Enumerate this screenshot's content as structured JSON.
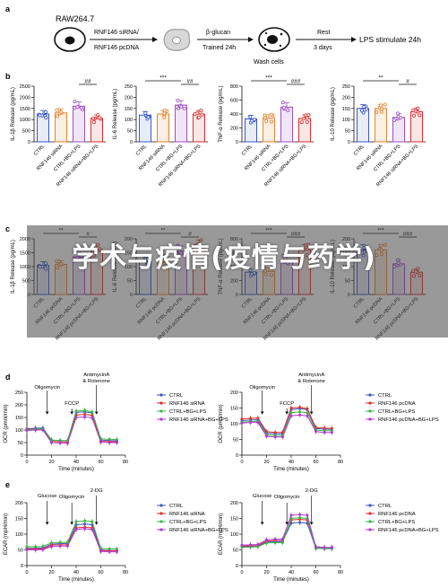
{
  "panel_letters": [
    "a",
    "b",
    "c",
    "d",
    "e"
  ],
  "schema": {
    "cell": "RAW264.7",
    "transfection_top": "RNF146 siRNA/",
    "transfection_bottom": "RNF146 pcDNA",
    "stim_top": "β-glucan",
    "stim_bottom": "Trained 24h",
    "wash": "Wash cells",
    "rest_top": "Rest",
    "rest_bottom": "3 days",
    "final": "LPS stimulate 24h"
  },
  "colors": {
    "blue": "#3a56c8",
    "orange": "#e8822f",
    "purple": "#a04dc8",
    "red": "#e02c2c",
    "green": "#3cb449",
    "magenta": "#b03ad0"
  },
  "cytokine_b": [
    {
      "ylabel": "IL-1β Release (pg/mL)",
      "ticks": [
        "0",
        "500",
        "1000",
        "1500",
        "2000",
        "2500"
      ],
      "ylim": [
        0,
        2500
      ],
      "groups": [
        "CTRL",
        "RNF146 siRNA",
        "CTRL+BG+LPS",
        "RNF146 siRNA+BG+LPS"
      ],
      "values": [
        1250,
        1300,
        1600,
        1050
      ],
      "sig": [
        {
          "label": "##",
          "from": 2,
          "to": 3
        }
      ]
    },
    {
      "ylabel": "IL-6 Release (pg/mL)",
      "ticks": [
        "0",
        "50",
        "100",
        "150",
        "200",
        "250"
      ],
      "ylim": [
        0,
        250
      ],
      "groups": [
        "CTRL",
        "RNF146 siRNA",
        "CTRL+BG+LPS",
        "RNF146 siRNA+BG+LPS"
      ],
      "values": [
        120,
        125,
        165,
        125
      ],
      "sig": [
        {
          "label": "***",
          "from": 0,
          "to": 2
        },
        {
          "label": "##",
          "from": 2,
          "to": 3
        }
      ]
    },
    {
      "ylabel": "TNF-α Release (pg/mL)",
      "ticks": [
        "0",
        "200",
        "400",
        "600",
        "800"
      ],
      "ylim": [
        0,
        800
      ],
      "groups": [
        "CTRL",
        "RNF146 siRNA",
        "CTRL+BG+LPS",
        "RNF146 siRNA+BG+LPS"
      ],
      "values": [
        330,
        340,
        500,
        335
      ],
      "sig": [
        {
          "label": "***",
          "from": 0,
          "to": 2
        },
        {
          "label": "###",
          "from": 2,
          "to": 3
        }
      ]
    },
    {
      "ylabel": "IL-10 Release (pg/mL)",
      "ticks": [
        "0",
        "50",
        "100",
        "150",
        "200",
        "250"
      ],
      "ylim": [
        0,
        250
      ],
      "groups": [
        "CTRL",
        "RNF146 siRNA",
        "CTRL+BG+LPS",
        "RNF146 siRNA+BG+LPS"
      ],
      "values": [
        150,
        150,
        110,
        135
      ],
      "sig": [
        {
          "label": "**",
          "from": 0,
          "to": 2
        },
        {
          "label": "#",
          "from": 2,
          "to": 3
        }
      ]
    }
  ],
  "cytokine_c": [
    {
      "ylabel": "IL-1β Release (pg/mL)",
      "ticks": [
        "0",
        "500",
        "1000",
        "1500",
        "2000"
      ],
      "ylim": [
        0,
        2000
      ],
      "groups": [
        "CTRL",
        "RNF146 pcDNA",
        "CTRL+BG+LPS",
        "RNF146 pcDNA+BG+LPS"
      ],
      "values": [
        1050,
        1080,
        1350,
        1600
      ],
      "sig": [
        {
          "label": "**",
          "from": 0,
          "to": 2
        },
        {
          "label": "#",
          "from": 2,
          "to": 3
        }
      ]
    },
    {
      "ylabel": "IL-6 Release (pg/mL)",
      "ticks": [
        "0",
        "50",
        "100",
        "150",
        "200"
      ],
      "ylim": [
        0,
        200
      ],
      "groups": [
        "CTRL",
        "RNF146 pcDNA",
        "CTRL+BG+LPS",
        "RNF146 pcDNA+BG+LPS"
      ],
      "values": [
        120,
        125,
        155,
        175
      ],
      "sig": [
        {
          "label": "**",
          "from": 0,
          "to": 2
        },
        {
          "label": "#",
          "from": 2,
          "to": 3
        }
      ]
    },
    {
      "ylabel": "TNF-α Release (pg/mL)",
      "ticks": [
        "0",
        "200",
        "400",
        "600",
        "800"
      ],
      "ylim": [
        0,
        800
      ],
      "groups": [
        "CTRL",
        "RNF146 pcDNA",
        "CTRL+BG+LPS",
        "RNF146 pcDNA+BG+LPS"
      ],
      "values": [
        320,
        330,
        490,
        640
      ],
      "sig": [
        {
          "label": "***",
          "from": 0,
          "to": 2
        },
        {
          "label": "###",
          "from": 2,
          "to": 3
        }
      ]
    },
    {
      "ylabel": "IL-10 Release (pg/mL)",
      "ticks": [
        "0",
        "50",
        "100",
        "150",
        "200"
      ],
      "ylim": [
        0,
        200
      ],
      "groups": [
        "CTRL",
        "RNF146 pcDNA",
        "CTRL+BG+LPS",
        "RNF146 pcDNA+BG+LPS"
      ],
      "values": [
        160,
        160,
        110,
        80
      ],
      "sig": [
        {
          "label": "***",
          "from": 0,
          "to": 2
        },
        {
          "label": "###",
          "from": 2,
          "to": 3
        }
      ]
    }
  ],
  "chart_data": [
    {
      "type": "line",
      "ylabel": "OCR (pmol/min)",
      "xlabel": "Time (minutes)",
      "xticks": [
        "0",
        "20",
        "40",
        "60",
        "80"
      ],
      "yticks": [
        "0",
        "50",
        "100",
        "150",
        "200",
        "250"
      ],
      "ylim": [
        0,
        250
      ],
      "xlim": [
        0,
        80
      ],
      "annotations": [
        "Oligomycin",
        "FCCP",
        "AntimycinA",
        "& Rotenone"
      ],
      "x": [
        0,
        7,
        13,
        20,
        27,
        33,
        40,
        47,
        53,
        60,
        67,
        73
      ],
      "series": [
        {
          "name": "CTRL",
          "values": [
            105,
            107,
            108,
            60,
            58,
            57,
            170,
            172,
            168,
            60,
            58,
            57
          ]
        },
        {
          "name": "RNF146 siRNA",
          "values": [
            102,
            104,
            104,
            55,
            53,
            52,
            160,
            162,
            158,
            55,
            54,
            53
          ]
        },
        {
          "name": "CTRL+BG+LPS",
          "values": [
            100,
            103,
            105,
            60,
            58,
            58,
            175,
            178,
            172,
            65,
            63,
            62
          ]
        },
        {
          "name": "RNF146 siRNA+BG+LPS",
          "values": [
            98,
            100,
            100,
            50,
            48,
            47,
            150,
            152,
            148,
            52,
            50,
            50
          ]
        }
      ]
    },
    {
      "type": "line",
      "ylabel": "OCR (pmol/min)",
      "xlabel": "Time (minutes)",
      "xticks": [
        "0",
        "20",
        "40",
        "60",
        "80"
      ],
      "yticks": [
        "0",
        "50",
        "100",
        "150",
        "200"
      ],
      "ylim": [
        0,
        200
      ],
      "xlim": [
        0,
        80
      ],
      "annotations": [
        "Oligomycin",
        "FCCP",
        "AntimycinA",
        "& Rotenone"
      ],
      "x": [
        0,
        7,
        13,
        20,
        27,
        33,
        40,
        47,
        53,
        60,
        67,
        73
      ],
      "series": [
        {
          "name": "CTRL",
          "values": [
            110,
            112,
            112,
            70,
            68,
            68,
            145,
            148,
            145,
            85,
            83,
            82
          ]
        },
        {
          "name": "RNF146 pcDNA",
          "values": [
            115,
            117,
            118,
            75,
            72,
            72,
            150,
            152,
            148,
            88,
            86,
            85
          ]
        },
        {
          "name": "CTRL+BG+LPS",
          "values": [
            105,
            107,
            108,
            65,
            62,
            62,
            135,
            138,
            135,
            80,
            78,
            78
          ]
        },
        {
          "name": "RNF146 pcDNA+BG+LPS",
          "values": [
            102,
            104,
            104,
            60,
            58,
            58,
            125,
            128,
            125,
            75,
            72,
            72
          ]
        }
      ]
    },
    {
      "type": "line",
      "ylabel": "ECAR (mpH/min)",
      "xlabel": "Time (minutes)",
      "xticks": [
        "0",
        "20",
        "40",
        "60",
        "80"
      ],
      "yticks": [
        "0",
        "50",
        "100",
        "150",
        "200"
      ],
      "ylim": [
        0,
        200
      ],
      "xlim": [
        0,
        80
      ],
      "annotations": [
        "Glucose",
        "Oligomycin",
        "2-DG"
      ],
      "x": [
        0,
        7,
        13,
        20,
        27,
        33,
        40,
        47,
        53,
        60,
        67,
        73
      ],
      "series": [
        {
          "name": "CTRL",
          "values": [
            55,
            55,
            56,
            68,
            70,
            70,
            130,
            132,
            130,
            50,
            48,
            48
          ]
        },
        {
          "name": "RNF146 siRNA",
          "values": [
            52,
            53,
            53,
            65,
            66,
            66,
            120,
            122,
            120,
            48,
            47,
            47
          ]
        },
        {
          "name": "CTRL+BG+LPS",
          "values": [
            60,
            60,
            61,
            72,
            74,
            74,
            140,
            142,
            140,
            55,
            53,
            53
          ]
        },
        {
          "name": "RNF146 siRNA+BG+LPS",
          "values": [
            50,
            50,
            51,
            60,
            62,
            62,
            115,
            117,
            115,
            45,
            44,
            44
          ]
        }
      ]
    },
    {
      "type": "line",
      "ylabel": "ECAR (mpH/min)",
      "xlabel": "Time (minutes)",
      "xticks": [
        "0",
        "20",
        "40",
        "60",
        "80"
      ],
      "yticks": [
        "0",
        "50",
        "100",
        "150",
        "200"
      ],
      "ylim": [
        0,
        200
      ],
      "xlim": [
        0,
        80
      ],
      "annotations": [
        "Glucose",
        "Oligomycin",
        "2-DG"
      ],
      "x": [
        0,
        7,
        13,
        20,
        27,
        33,
        40,
        47,
        53,
        60,
        67,
        73
      ],
      "series": [
        {
          "name": "CTRL",
          "values": [
            60,
            61,
            62,
            75,
            76,
            76,
            135,
            137,
            135,
            55,
            54,
            54
          ]
        },
        {
          "name": "RNF146 pcDNA",
          "values": [
            62,
            63,
            64,
            78,
            80,
            80,
            145,
            147,
            145,
            58,
            57,
            57
          ]
        },
        {
          "name": "CTRL+BG+LPS",
          "values": [
            58,
            59,
            60,
            72,
            73,
            73,
            150,
            152,
            150,
            56,
            55,
            55
          ]
        },
        {
          "name": "RNF146 pcDNA+BG+LPS",
          "values": [
            65,
            66,
            67,
            82,
            84,
            84,
            160,
            162,
            160,
            60,
            58,
            58
          ]
        }
      ]
    }
  ],
  "watermark": "学术与疫情(疫情与药学)"
}
